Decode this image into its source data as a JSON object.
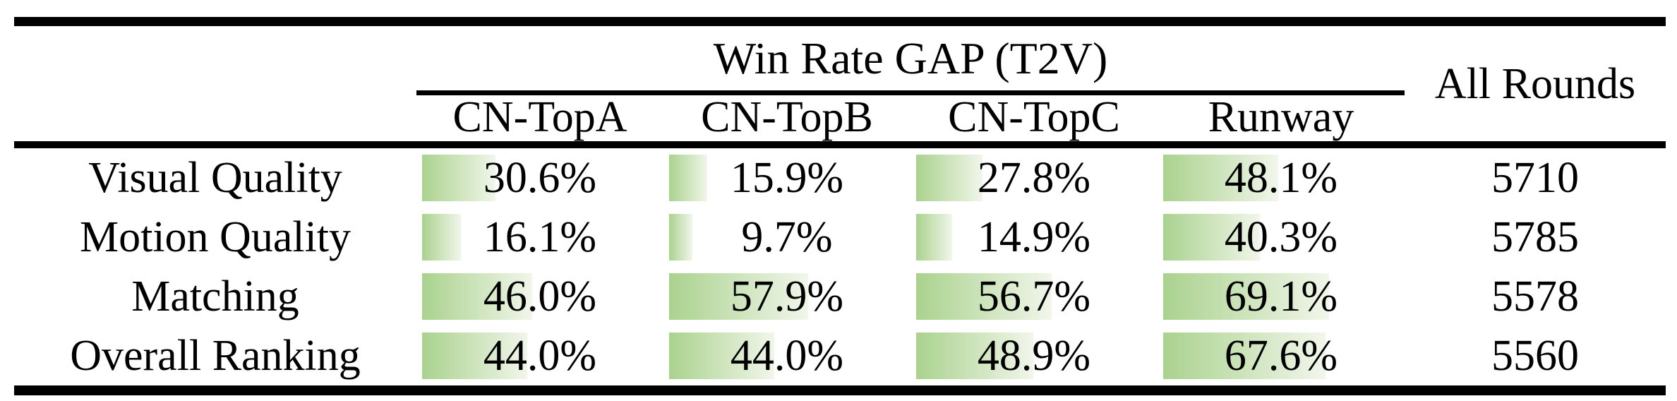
{
  "table": {
    "title": "Win Rate GAP (T2V)",
    "all_rounds_header": "All Rounds",
    "columns": [
      "CN-TopA",
      "CN-TopB",
      "CN-TopC",
      "Runway"
    ],
    "value_suffix": "%",
    "rows": [
      {
        "label": "Visual Quality",
        "values": [
          "30.6",
          "15.9",
          "27.8",
          "48.1"
        ],
        "all_rounds": "5710"
      },
      {
        "label": "Motion Quality",
        "values": [
          "16.1",
          "9.7",
          "14.9",
          "40.3"
        ],
        "all_rounds": "5785"
      },
      {
        "label": "Matching",
        "values": [
          "46.0",
          "57.9",
          "56.7",
          "69.1"
        ],
        "all_rounds": "5578"
      },
      {
        "label": "Overall Ranking",
        "values": [
          "44.0",
          "44.0",
          "48.9",
          "67.6"
        ],
        "all_rounds": "5560"
      }
    ]
  },
  "colors": {
    "rule": "#000000",
    "text": "#000000",
    "bar_gradient_start": "#aad28e",
    "bar_gradient_end": "#f1f6ea"
  },
  "bar_scale_percent_of_cell": 0.97,
  "chart_data": {
    "type": "table",
    "title": "Win Rate GAP (T2V)",
    "columns": [
      "CN-TopA",
      "CN-TopB",
      "CN-TopC",
      "Runway",
      "All Rounds"
    ],
    "row_labels": [
      "Visual Quality",
      "Motion Quality",
      "Matching",
      "Overall Ranking"
    ],
    "series": [
      {
        "name": "CN-TopA",
        "values": [
          30.6,
          16.1,
          46.0,
          44.0
        ]
      },
      {
        "name": "CN-TopB",
        "values": [
          15.9,
          9.7,
          57.9,
          44.0
        ]
      },
      {
        "name": "CN-TopC",
        "values": [
          27.8,
          14.9,
          56.7,
          48.9
        ]
      },
      {
        "name": "Runway",
        "values": [
          48.1,
          40.3,
          69.1,
          67.6
        ]
      }
    ],
    "all_rounds": [
      5710,
      5785,
      5578,
      5560
    ],
    "unit": "%",
    "layout_hints": "green gradient data bars behind centered percentages, bar width proportional to value (0-100%); booktabs-style horizontal rules; cmidrule spans only the four T2V columns"
  }
}
